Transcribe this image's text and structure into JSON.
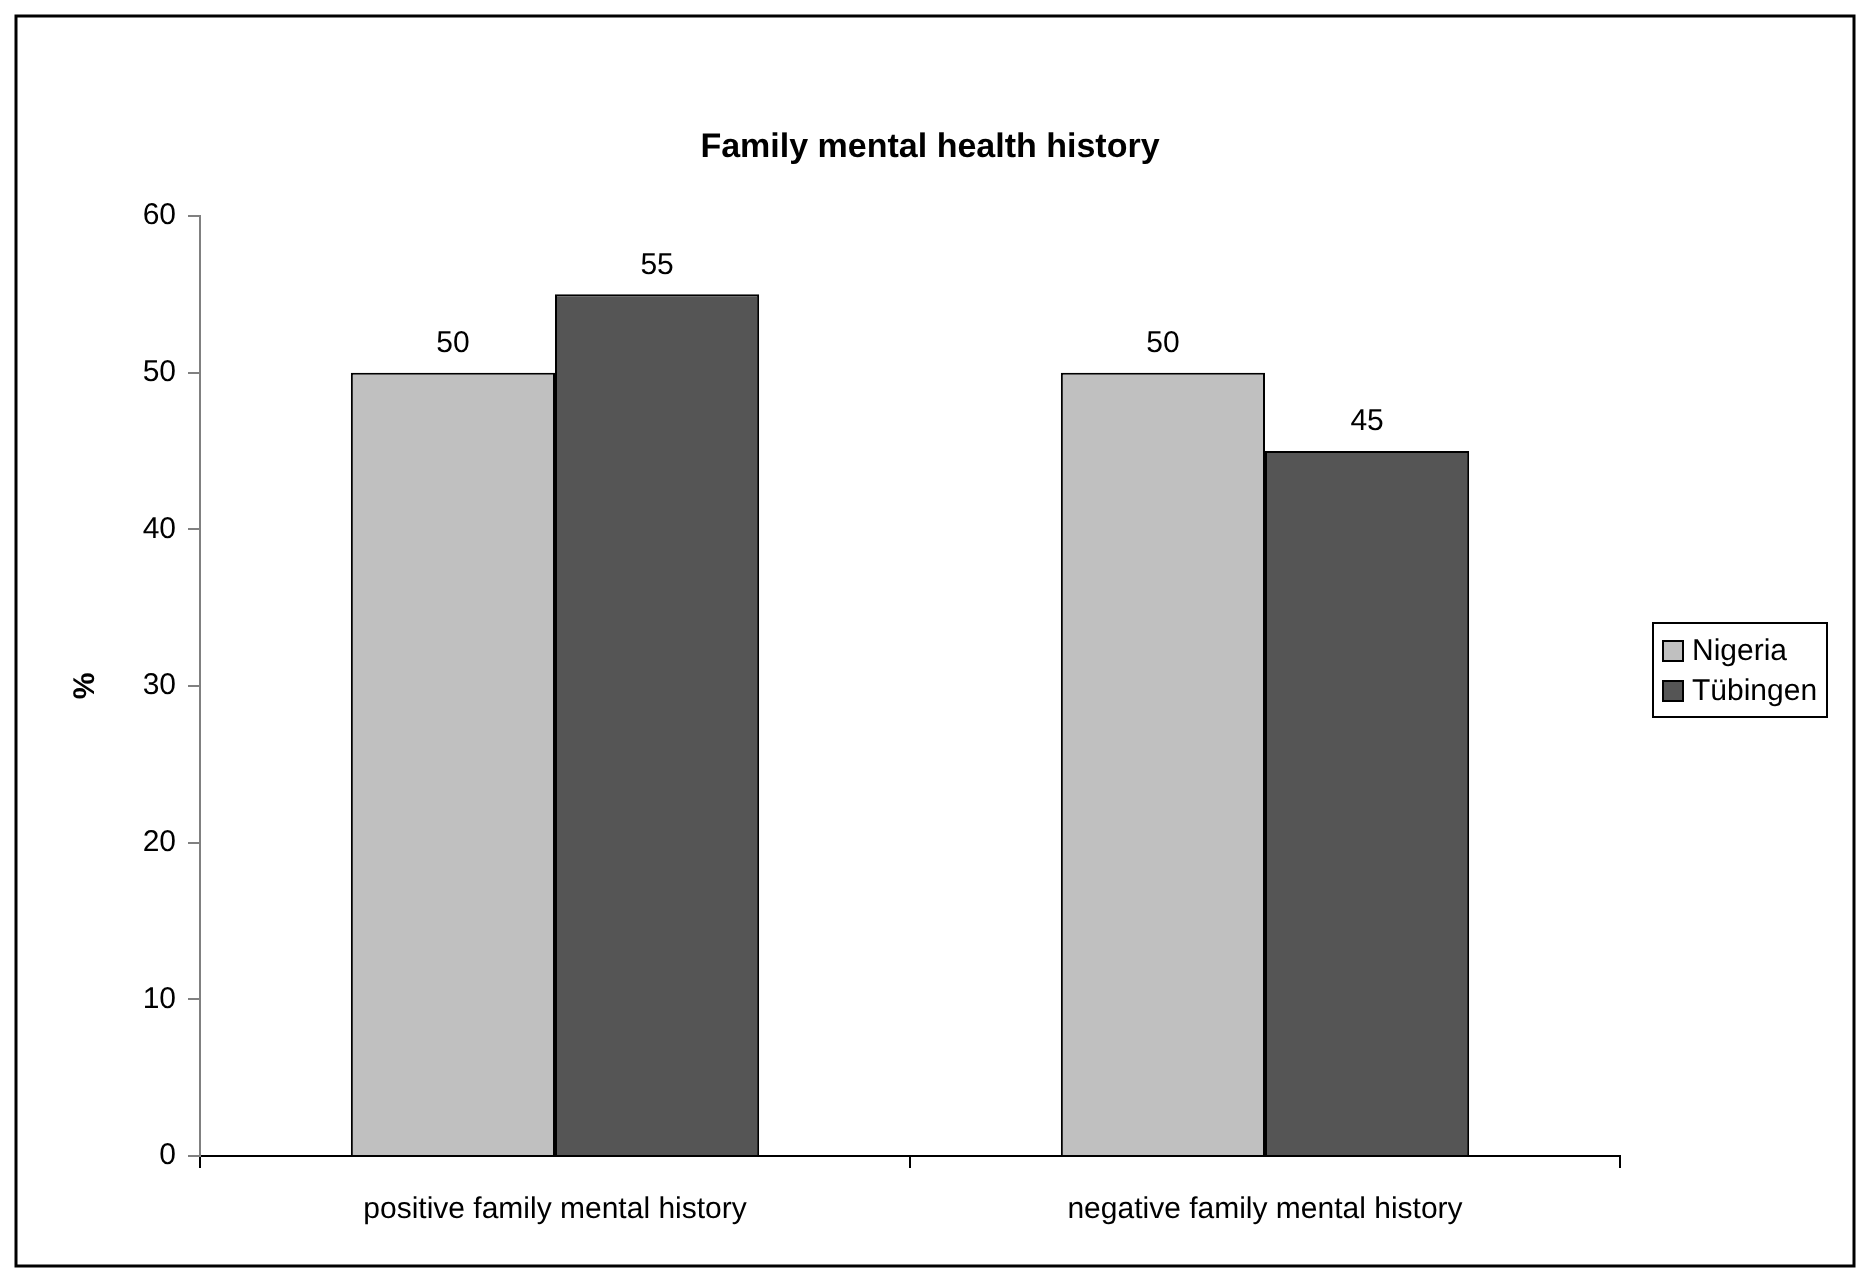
{
  "chart_data": {
    "type": "bar",
    "title": "Family mental health history",
    "ylabel": "%",
    "categories": [
      "positive family mental history",
      "negative family mental history"
    ],
    "series": [
      {
        "name": "Nigeria",
        "color": "#c0c0c0",
        "values": [
          50,
          50
        ]
      },
      {
        "name": "Tübingen",
        "color": "#555555",
        "values": [
          55,
          45
        ]
      }
    ],
    "ylim": [
      0,
      60
    ],
    "yticks": [
      0,
      10,
      20,
      30,
      40,
      50,
      60
    ],
    "grid": false,
    "legend": "right",
    "data_labels": true
  }
}
